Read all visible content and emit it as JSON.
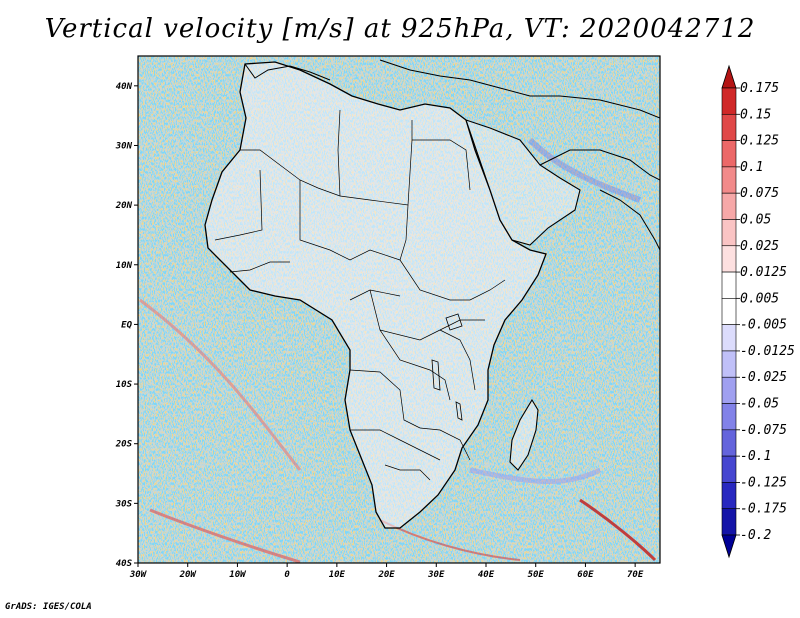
{
  "title": "Vertical velocity [m/s] at 925hPa, VT: 2020042712",
  "footer": "GrADS: IGES/COLA",
  "map": {
    "lon_range": [
      -30,
      75
    ],
    "lat_range": [
      -40,
      45
    ],
    "lon_ticks": [
      {
        "value": -30,
        "label": "30W"
      },
      {
        "value": -20,
        "label": "20W"
      },
      {
        "value": -10,
        "label": "10W"
      },
      {
        "value": 0,
        "label": "0"
      },
      {
        "value": 10,
        "label": "10E"
      },
      {
        "value": 20,
        "label": "20E"
      },
      {
        "value": 30,
        "label": "30E"
      },
      {
        "value": 40,
        "label": "40E"
      },
      {
        "value": 50,
        "label": "50E"
      },
      {
        "value": 60,
        "label": "60E"
      },
      {
        "value": 70,
        "label": "70E"
      }
    ],
    "lat_ticks": [
      {
        "value": 40,
        "label": "40N"
      },
      {
        "value": 30,
        "label": "30N"
      },
      {
        "value": 20,
        "label": "20N"
      },
      {
        "value": 10,
        "label": "10N"
      },
      {
        "value": 0,
        "label": "EQ"
      },
      {
        "value": -10,
        "label": "10S"
      },
      {
        "value": -20,
        "label": "20S"
      },
      {
        "value": -30,
        "label": "30S"
      },
      {
        "value": -40,
        "label": "40S"
      }
    ]
  },
  "colorbar": {
    "levels": [
      "0.175",
      "0.15",
      "0.125",
      "0.1",
      "0.075",
      "0.05",
      "0.025",
      "0.0125",
      "0.005",
      "-0.005",
      "-0.0125",
      "-0.025",
      "-0.05",
      "-0.075",
      "-0.1",
      "-0.125",
      "-0.175",
      "-0.2"
    ],
    "colors": [
      "#b41414",
      "#d02828",
      "#e04848",
      "#ec6868",
      "#f28a8a",
      "#f6a8a8",
      "#fac4c4",
      "#fde0e0",
      "#ffffff",
      "#ffffff",
      "#dcdcfc",
      "#c0c0f8",
      "#a0a0f0",
      "#8282e8",
      "#6464dc",
      "#4646d0",
      "#2828c0",
      "#1414a8",
      "#000096"
    ]
  }
}
